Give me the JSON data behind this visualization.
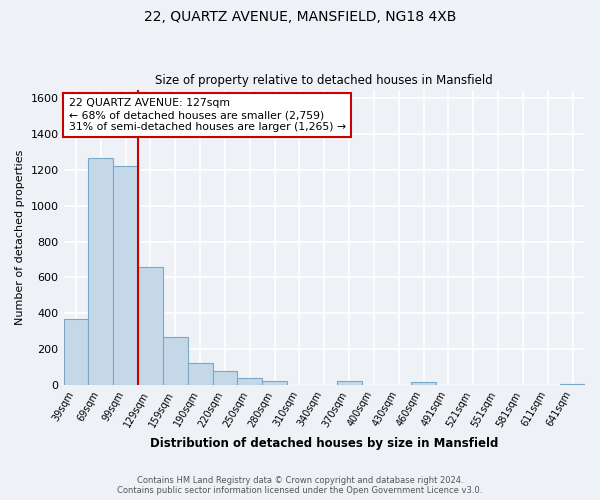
{
  "title1": "22, QUARTZ AVENUE, MANSFIELD, NG18 4XB",
  "title2": "Size of property relative to detached houses in Mansfield",
  "xlabel": "Distribution of detached houses by size in Mansfield",
  "ylabel": "Number of detached properties",
  "bar_labels": [
    "39sqm",
    "69sqm",
    "99sqm",
    "129sqm",
    "159sqm",
    "190sqm",
    "220sqm",
    "250sqm",
    "280sqm",
    "310sqm",
    "340sqm",
    "370sqm",
    "400sqm",
    "430sqm",
    "460sqm",
    "491sqm",
    "521sqm",
    "551sqm",
    "581sqm",
    "611sqm",
    "641sqm"
  ],
  "bar_values": [
    370,
    1265,
    1220,
    660,
    265,
    120,
    75,
    35,
    20,
    0,
    0,
    20,
    0,
    0,
    15,
    0,
    0,
    0,
    0,
    0,
    5
  ],
  "bar_color": "#c5d8e8",
  "bar_edge_color": "#7aa8c7",
  "property_line_x": 2.5,
  "property_line_color": "#cc0000",
  "ylim": [
    0,
    1650
  ],
  "yticks": [
    0,
    200,
    400,
    600,
    800,
    1000,
    1200,
    1400,
    1600
  ],
  "annotation_title": "22 QUARTZ AVENUE: 127sqm",
  "annotation_line1": "← 68% of detached houses are smaller (2,759)",
  "annotation_line2": "31% of semi-detached houses are larger (1,265) →",
  "annotation_box_color": "#ffffff",
  "annotation_box_edge": "#cc0000",
  "footer1": "Contains HM Land Registry data © Crown copyright and database right 2024.",
  "footer2": "Contains public sector information licensed under the Open Government Licence v3.0.",
  "bg_color": "#eef2f7",
  "grid_color": "#ffffff"
}
